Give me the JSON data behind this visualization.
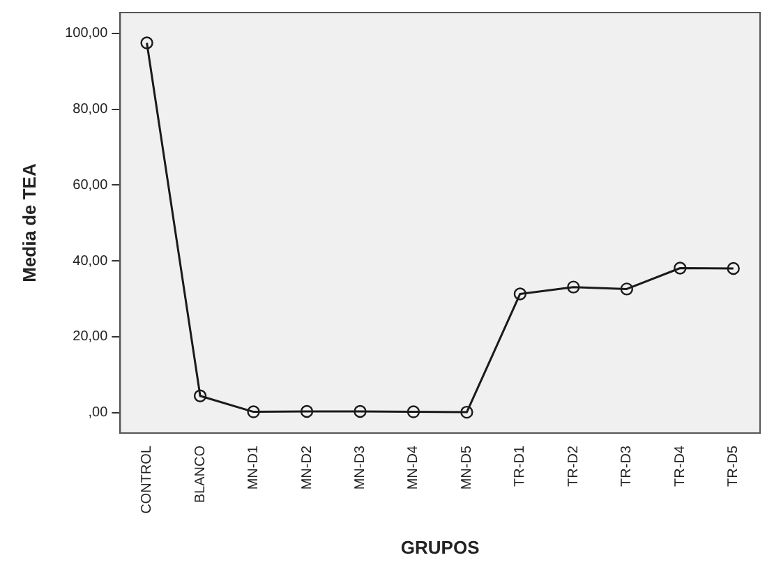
{
  "chart_data": {
    "type": "line",
    "xlabel": "GRUPOS",
    "ylabel": "Media de TEA",
    "categories": [
      "CONTROL",
      "BLANCO",
      "MN-D1",
      "MN-D2",
      "MN-D3",
      "MN-D4",
      "MN-D5",
      "TR-D1",
      "TR-D2",
      "TR-D3",
      "TR-D4",
      "TR-D5"
    ],
    "series": [
      {
        "color": "#1a1a1a",
        "values": [
          97.5,
          4.4,
          0.2,
          0.3,
          0.3,
          0.2,
          0.1,
          31.3,
          33.1,
          32.6,
          38.1,
          38.0
        ]
      }
    ],
    "ylim": [
      -5.4,
      105.5
    ],
    "yticks": [
      {
        "value": 0,
        "label": ",00"
      },
      {
        "value": 20,
        "label": "20,00"
      },
      {
        "value": 40,
        "label": "40,00"
      },
      {
        "value": 60,
        "label": "60,00"
      },
      {
        "value": 80,
        "label": "80,00"
      },
      {
        "value": 100,
        "label": "100,00"
      }
    ],
    "grid": false,
    "legend": false,
    "marker": "circle",
    "line_style": "solid"
  }
}
